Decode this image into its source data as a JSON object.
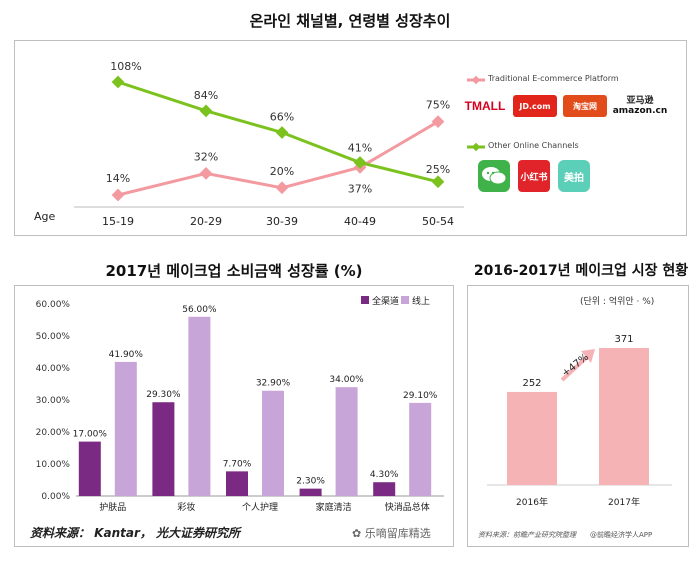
{
  "colors": {
    "pink_line": "#f29a9f",
    "green_line": "#7cc21e",
    "dark_purple": "#7a2a82",
    "light_purple": "#c8a5d8",
    "salmon": "#f5b3b5"
  },
  "chart1": {
    "title": "온라인 채널별, 연령별 성장추이",
    "axis_label": "Age",
    "chart_data": {
      "type": "line",
      "categories": [
        "15-19",
        "20-29",
        "30-39",
        "40-49",
        "50-54"
      ],
      "series": [
        {
          "name": "Traditional E-commerce Platform",
          "values": [
            14,
            32,
            20,
            37,
            75
          ],
          "labels": [
            "14%",
            "32%",
            "20%",
            "37%",
            "75%"
          ]
        },
        {
          "name": "Other Online Channels",
          "values": [
            108,
            84,
            66,
            41,
            25
          ],
          "labels": [
            "108%",
            "84%",
            "66%",
            "41%",
            "25%"
          ]
        }
      ],
      "ylim": [
        0,
        120
      ],
      "legend": "right"
    },
    "legend": {
      "traditional": "Traditional E-commerce Platform",
      "other": "Other Online Channels"
    },
    "logos": {
      "tmall": "TMALL",
      "jd": "JD.com",
      "taobao": "淘宝网",
      "amazon": "amazon.cn",
      "amazon_top": "亚马逊",
      "wechat": "WeChat",
      "xhs": "小红书",
      "other": "美拍"
    }
  },
  "chart2": {
    "title": "2017년 메이크업 소비금액 성장률 (%)",
    "chart_data": {
      "type": "bar",
      "categories": [
        "护肤品",
        "彩妆",
        "个人护理",
        "家庭清洁",
        "快消品总体"
      ],
      "series": [
        {
          "name": "全渠道",
          "values": [
            17.0,
            29.3,
            7.7,
            2.3,
            4.3
          ],
          "labels": [
            "17.00%",
            "29.30%",
            "7.70%",
            "2.30%",
            "4.30%"
          ]
        },
        {
          "name": "线上",
          "values": [
            41.9,
            56.0,
            32.9,
            34.0,
            29.1
          ],
          "labels": [
            "41.90%",
            "56.00%",
            "32.90%",
            "34.00%",
            "29.10%"
          ]
        }
      ],
      "ylim": [
        0,
        60
      ],
      "yticks": [
        "0.00%",
        "10.00%",
        "20.00%",
        "30.00%",
        "40.00%",
        "50.00%",
        "60.00%"
      ],
      "legend": "top-right"
    },
    "source": "资料来源： Kantar， 光大证券研究所",
    "watermark": "乐嘀留库精选"
  },
  "chart3": {
    "title": "2016-2017년 메이크업 시장 현황",
    "unit": "(단위 : 억위안 · %)",
    "chart_data": {
      "type": "bar",
      "categories": [
        "2016年",
        "2017年"
      ],
      "values": [
        252,
        371
      ],
      "labels": [
        "252",
        "371"
      ],
      "growth": "+47%"
    },
    "source_left": "资料来源：前瞻产业研究院整理",
    "source_right": "@前瞻经济学人APP"
  }
}
